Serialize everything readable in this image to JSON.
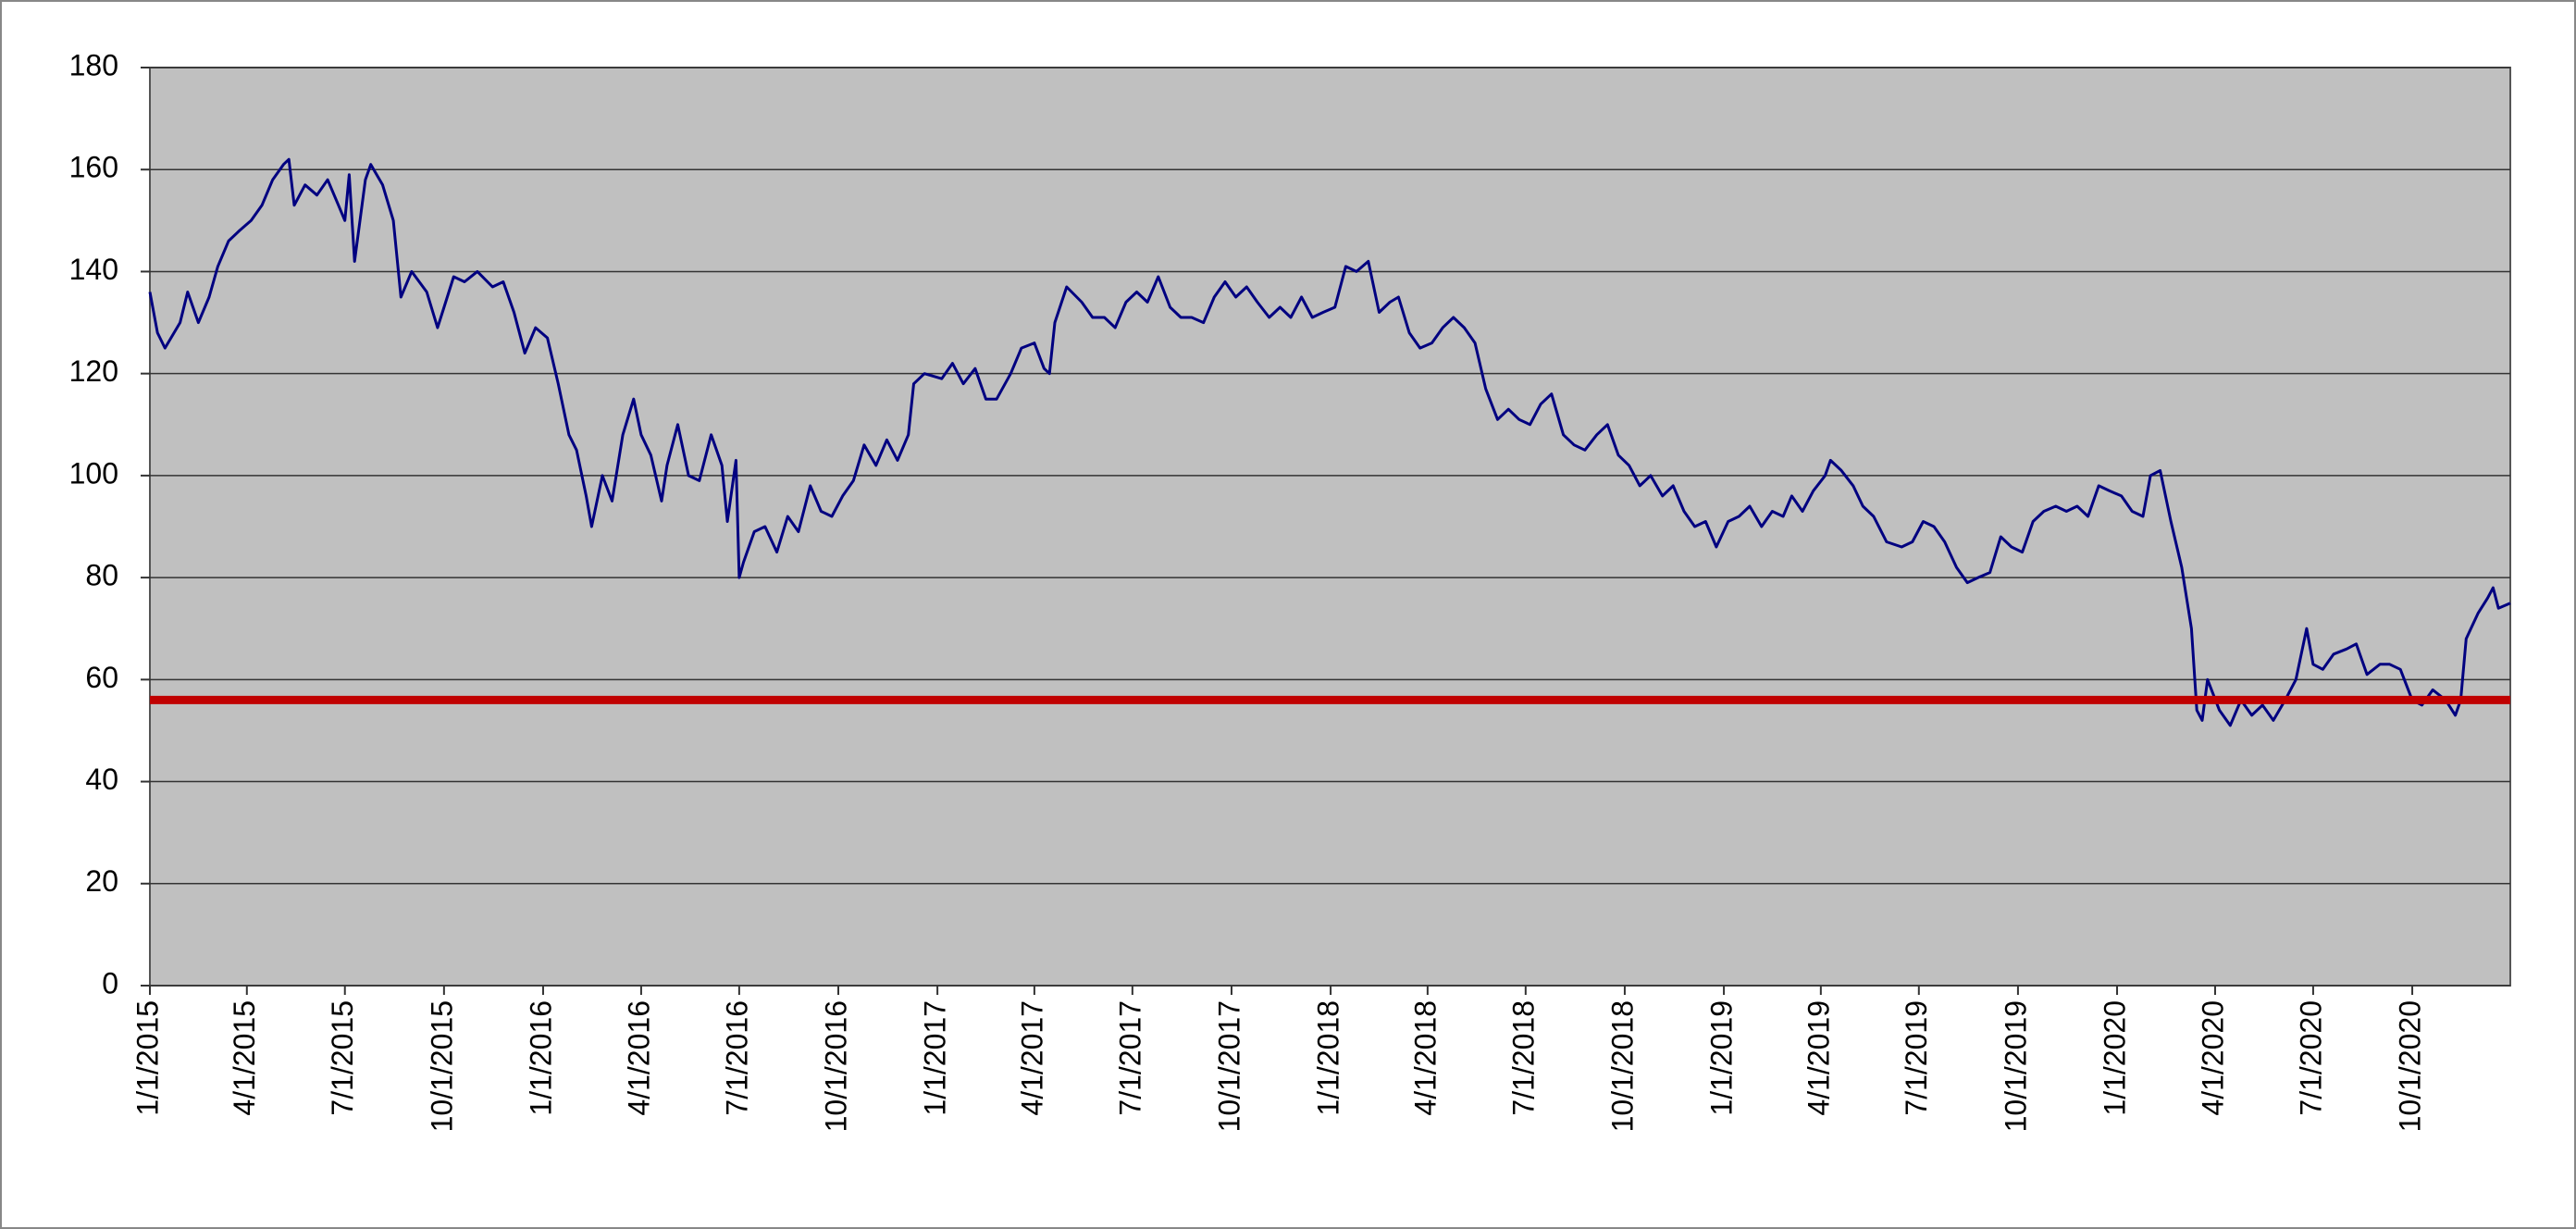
{
  "chart_data": {
    "type": "line",
    "x": [
      "1/1/2015",
      "1/8/2015",
      "1/15/2015",
      "1/29/2015",
      "2/5/2015",
      "2/15/2015",
      "2/25/2015",
      "3/5/2015",
      "3/15/2015",
      "3/25/2015",
      "4/5/2015",
      "4/15/2015",
      "4/25/2015",
      "5/5/2015",
      "5/10/2015",
      "5/15/2015",
      "5/25/2015",
      "6/5/2015",
      "6/15/2015",
      "6/25/2015",
      "7/1/2015",
      "7/5/2015",
      "7/10/2015",
      "7/20/2015",
      "7/25/2015",
      "8/5/2015",
      "8/15/2015",
      "8/22/2015",
      "9/1/2015",
      "9/15/2015",
      "9/25/2015",
      "10/1/2015",
      "10/10/2015",
      "10/20/2015",
      "11/1/2015",
      "11/15/2015",
      "11/25/2015",
      "12/5/2015",
      "12/15/2015",
      "12/25/2015",
      "1/5/2016",
      "1/15/2016",
      "1/25/2016",
      "2/1/2016",
      "2/10/2016",
      "2/15/2016",
      "2/25/2016",
      "3/5/2016",
      "3/15/2016",
      "3/25/2016",
      "4/1/2016",
      "4/10/2016",
      "4/20/2016",
      "4/25/2016",
      "5/5/2016",
      "5/15/2016",
      "5/25/2016",
      "6/5/2016",
      "6/15/2016",
      "6/20/2016",
      "6/28/2016",
      "7/1/2016",
      "7/5/2016",
      "7/15/2016",
      "7/25/2016",
      "8/5/2016",
      "8/15/2016",
      "8/25/2016",
      "9/5/2016",
      "9/15/2016",
      "9/25/2016",
      "10/5/2016",
      "10/15/2016",
      "10/25/2016",
      "11/5/2016",
      "11/15/2016",
      "11/25/2016",
      "12/5/2016",
      "12/10/2016",
      "12/20/2016",
      "1/5/2017",
      "1/15/2017",
      "1/25/2017",
      "2/5/2017",
      "2/15/2017",
      "2/25/2017",
      "3/10/2017",
      "3/20/2017",
      "4/1/2017",
      "4/10/2017",
      "4/15/2017",
      "4/20/2017",
      "5/1/2017",
      "5/15/2017",
      "5/25/2017",
      "6/5/2017",
      "6/15/2017",
      "6/25/2017",
      "7/5/2017",
      "7/15/2017",
      "7/25/2017",
      "8/5/2017",
      "8/15/2017",
      "8/25/2017",
      "9/5/2017",
      "9/15/2017",
      "9/25/2017",
      "10/5/2017",
      "10/15/2017",
      "10/25/2017",
      "11/5/2017",
      "11/15/2017",
      "11/25/2017",
      "12/5/2017",
      "12/15/2017",
      "12/25/2017",
      "1/5/2018",
      "1/15/2018",
      "1/25/2018",
      "2/5/2018",
      "2/15/2018",
      "2/25/2018",
      "3/5/2018",
      "3/15/2018",
      "3/25/2018",
      "4/5/2018",
      "4/15/2018",
      "4/25/2018",
      "5/5/2018",
      "5/15/2018",
      "5/25/2018",
      "6/5/2018",
      "6/15/2018",
      "6/25/2018",
      "7/5/2018",
      "7/15/2018",
      "7/25/2018",
      "8/5/2018",
      "8/15/2018",
      "8/25/2018",
      "9/5/2018",
      "9/15/2018",
      "9/25/2018",
      "10/5/2018",
      "10/15/2018",
      "10/25/2018",
      "11/5/2018",
      "11/15/2018",
      "11/25/2018",
      "12/5/2018",
      "12/15/2018",
      "12/25/2018",
      "1/5/2019",
      "1/15/2019",
      "1/25/2019",
      "2/5/2019",
      "2/15/2019",
      "2/25/2019",
      "3/5/2019",
      "3/15/2019",
      "3/25/2019",
      "4/5/2019",
      "4/10/2019",
      "4/20/2019",
      "5/1/2019",
      "5/10/2019",
      "5/20/2019",
      "6/1/2019",
      "6/15/2019",
      "6/25/2019",
      "7/5/2019",
      "7/15/2019",
      "7/25/2019",
      "8/5/2019",
      "8/15/2019",
      "8/25/2019",
      "9/5/2019",
      "9/15/2019",
      "9/25/2019",
      "10/5/2019",
      "10/15/2019",
      "10/25/2019",
      "11/5/2019",
      "11/15/2019",
      "11/25/2019",
      "12/5/2019",
      "12/15/2019",
      "12/25/2019",
      "1/5/2020",
      "1/15/2020",
      "1/25/2020",
      "2/1/2020",
      "2/10/2020",
      "2/20/2020",
      "3/1/2020",
      "3/10/2020",
      "3/15/2020",
      "3/20/2020",
      "3/25/2020",
      "4/5/2020",
      "4/15/2020",
      "4/25/2020",
      "5/5/2020",
      "5/15/2020",
      "5/25/2020",
      "6/5/2020",
      "6/15/2020",
      "6/25/2020",
      "7/1/2020",
      "7/10/2020",
      "7/20/2020",
      "8/1/2020",
      "8/10/2020",
      "8/20/2020",
      "9/1/2020",
      "9/10/2020",
      "9/20/2020",
      "10/1/2020",
      "10/10/2020",
      "10/20/2020",
      "11/1/2020",
      "11/10/2020",
      "11/15/2020",
      "11/20/2020",
      "12/1/2020",
      "12/10/2020",
      "12/15/2020",
      "12/20/2020",
      "12/31/2020"
    ],
    "series": [
      {
        "color": "#000080",
        "values": [
          136,
          128,
          125,
          130,
          136,
          130,
          135,
          141,
          146,
          148,
          150,
          153,
          158,
          161,
          162,
          153,
          157,
          155,
          158,
          153,
          150,
          159,
          142,
          158,
          161,
          157,
          150,
          135,
          140,
          136,
          129,
          133,
          139,
          138,
          140,
          137,
          138,
          132,
          124,
          129,
          127,
          118,
          108,
          105,
          96,
          90,
          100,
          95,
          108,
          115,
          108,
          104,
          95,
          102,
          110,
          100,
          99,
          108,
          102,
          91,
          103,
          80,
          83,
          89,
          90,
          85,
          92,
          89,
          98,
          93,
          92,
          96,
          99,
          106,
          102,
          107,
          103,
          108,
          118,
          120,
          119,
          122,
          118,
          121,
          115,
          115,
          120,
          125,
          126,
          121,
          120,
          130,
          137,
          134,
          131,
          131,
          129,
          134,
          136,
          134,
          139,
          133,
          131,
          131,
          130,
          135,
          138,
          135,
          137,
          134,
          131,
          133,
          131,
          135,
          131,
          132,
          133,
          141,
          140,
          142,
          132,
          134,
          135,
          128,
          125,
          126,
          129,
          131,
          129,
          126,
          117,
          111,
          113,
          111,
          110,
          114,
          116,
          108,
          106,
          105,
          108,
          110,
          104,
          102,
          98,
          100,
          96,
          98,
          93,
          90,
          91,
          86,
          91,
          92,
          94,
          90,
          93,
          92,
          96,
          93,
          97,
          100,
          103,
          101,
          98,
          94,
          92,
          87,
          86,
          87,
          91,
          90,
          87,
          82,
          79,
          80,
          81,
          88,
          86,
          85,
          91,
          93,
          94,
          93,
          94,
          92,
          98,
          97,
          96,
          93,
          92,
          100,
          101,
          91,
          82,
          70,
          54,
          52,
          60,
          54,
          51,
          56,
          53,
          55,
          52,
          56,
          60,
          70,
          63,
          62,
          65,
          66,
          67,
          61,
          63,
          63,
          62,
          56,
          55,
          58,
          56,
          53,
          56,
          68,
          73,
          76,
          78,
          74,
          75
        ]
      }
    ],
    "reference_lines": [
      {
        "value": 56,
        "color": "#c00000"
      }
    ],
    "xlim": [
      "1/1/2015",
      "12/31/2020"
    ],
    "xticks": [
      "1/1/2015",
      "4/1/2015",
      "7/1/2015",
      "10/1/2015",
      "1/1/2016",
      "4/1/2016",
      "7/1/2016",
      "10/1/2016",
      "1/1/2017",
      "4/1/2017",
      "7/1/2017",
      "10/1/2017",
      "1/1/2018",
      "4/1/2018",
      "7/1/2018",
      "10/1/2018",
      "1/1/2019",
      "4/1/2019",
      "7/1/2019",
      "10/1/2019",
      "1/1/2020",
      "4/1/2020",
      "7/1/2020",
      "10/1/2020"
    ],
    "ylim": [
      0,
      180
    ],
    "yticks": [
      0,
      20,
      40,
      60,
      80,
      100,
      120,
      140,
      160,
      180
    ],
    "grid": true
  }
}
